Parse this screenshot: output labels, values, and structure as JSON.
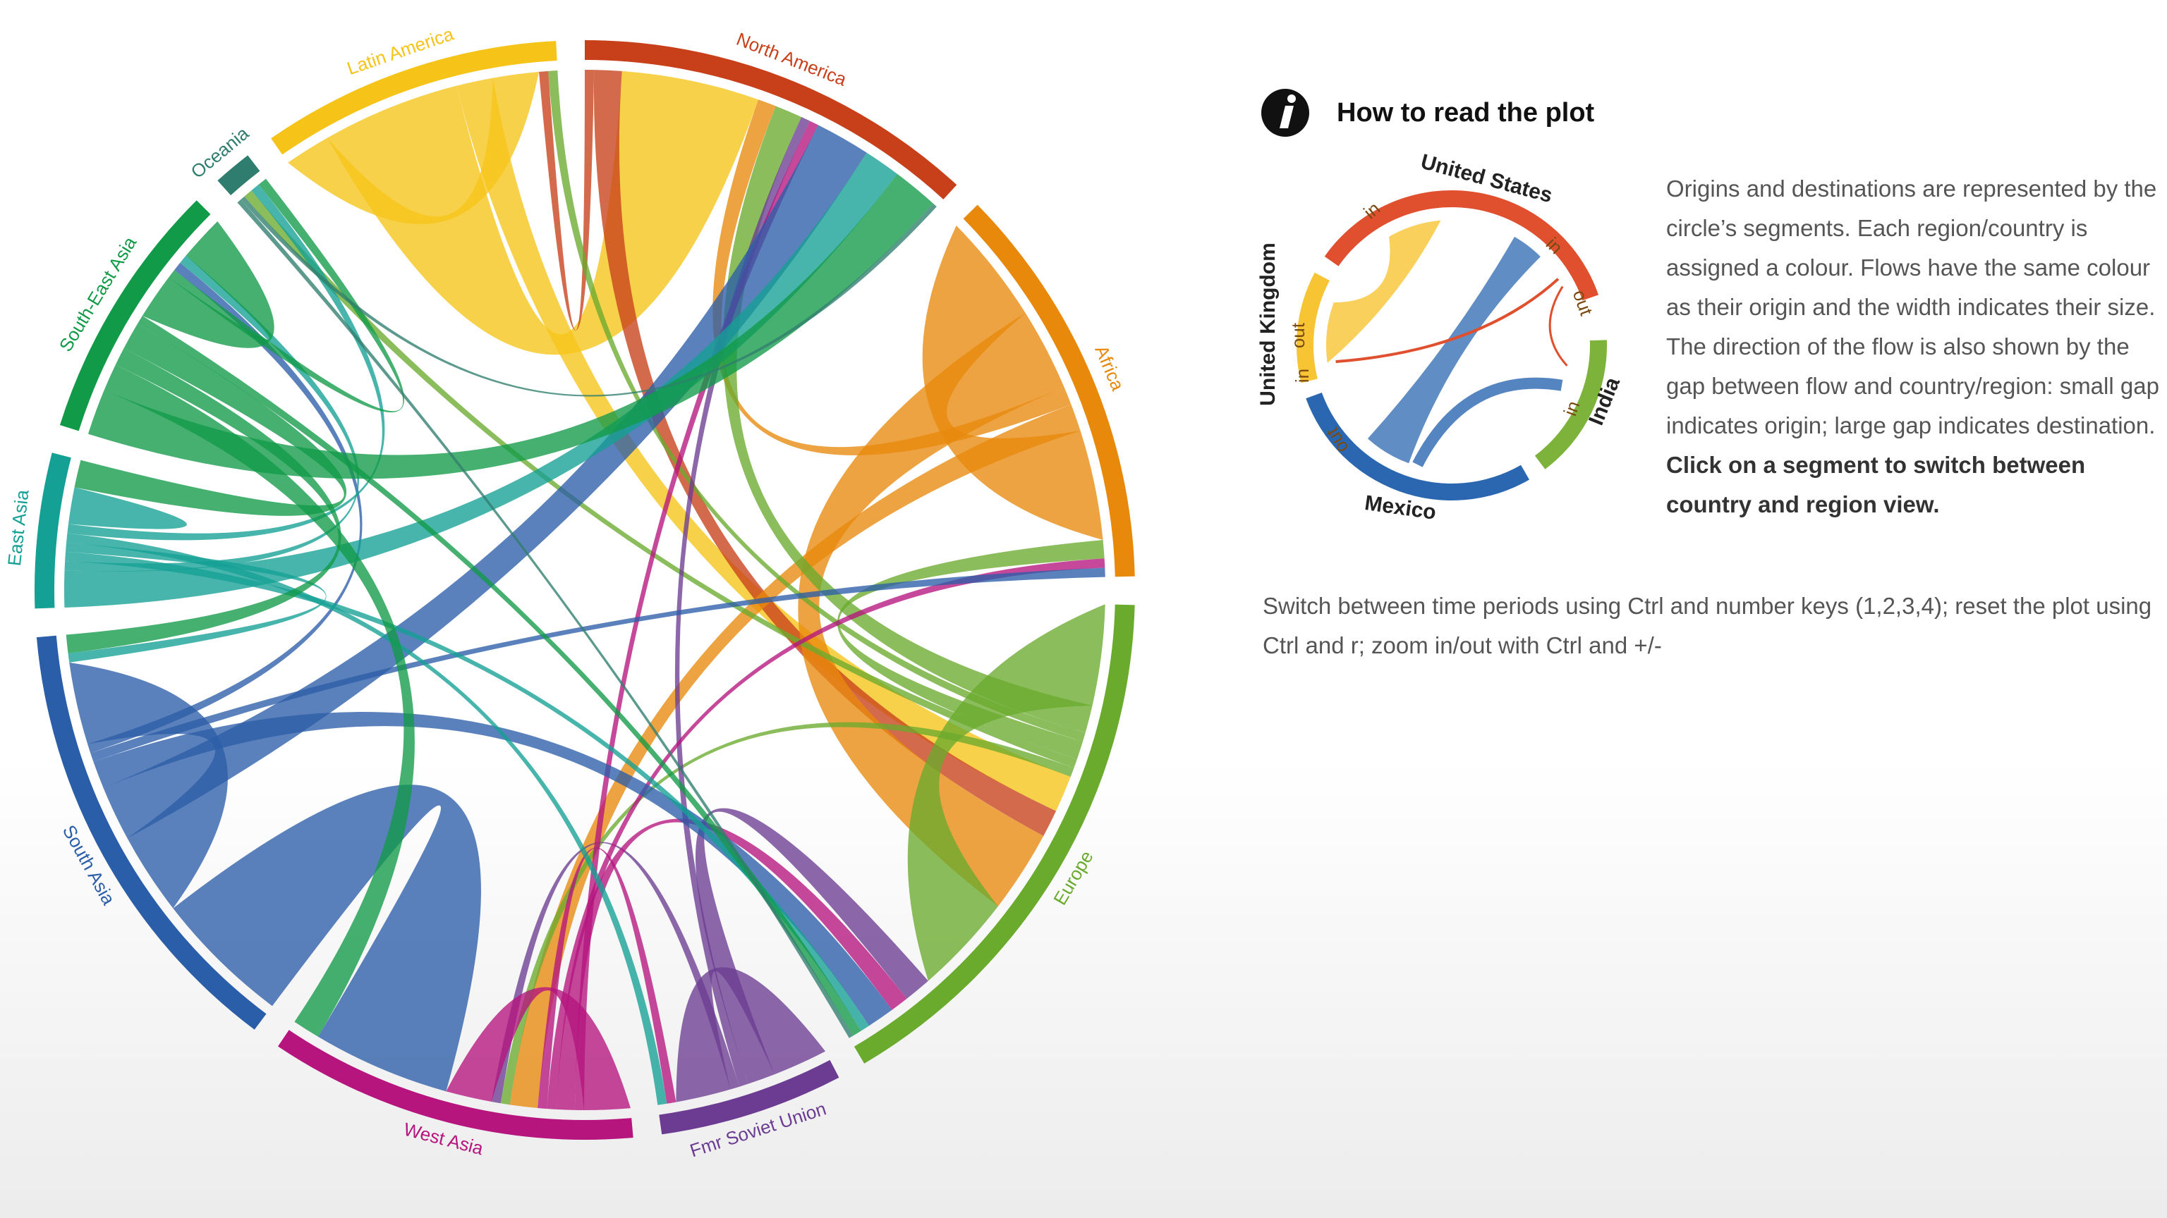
{
  "chart_data": {
    "type": "chord",
    "regions": [
      {
        "name": "North America",
        "color": "#c8401a"
      },
      {
        "name": "Africa",
        "color": "#e8890c"
      },
      {
        "name": "Europe",
        "color": "#6aab2e"
      },
      {
        "name": "Fmr Soviet Union",
        "color": "#6b3c91"
      },
      {
        "name": "West Asia",
        "color": "#b5157d"
      },
      {
        "name": "South Asia",
        "color": "#2b5ea8"
      },
      {
        "name": "East Asia",
        "color": "#14a095"
      },
      {
        "name": "South-East Asia",
        "color": "#119a48"
      },
      {
        "name": "Oceania",
        "color": "#2f7d6e"
      },
      {
        "name": "Latin America",
        "color": "#f6c418"
      }
    ],
    "flows": [
      {
        "source": "Latin America",
        "target": "Latin America",
        "value": 5
      },
      {
        "source": "Latin America",
        "target": "North America",
        "value": 15
      },
      {
        "source": "Latin America",
        "target": "Europe",
        "value": 4
      },
      {
        "source": "North America",
        "target": "Latin America",
        "value": 1
      },
      {
        "source": "North America",
        "target": "Europe",
        "value": 3
      },
      {
        "source": "Africa",
        "target": "Africa",
        "value": 12
      },
      {
        "source": "Africa",
        "target": "Europe",
        "value": 9
      },
      {
        "source": "Africa",
        "target": "North America",
        "value": 2
      },
      {
        "source": "Africa",
        "target": "West Asia",
        "value": 3
      },
      {
        "source": "Europe",
        "target": "Europe",
        "value": 11
      },
      {
        "source": "Europe",
        "target": "North America",
        "value": 3
      },
      {
        "source": "Europe",
        "target": "Latin America",
        "value": 1
      },
      {
        "source": "Europe",
        "target": "Africa",
        "value": 2
      },
      {
        "source": "Europe",
        "target": "Oceania",
        "value": 1
      },
      {
        "source": "Europe",
        "target": "West Asia",
        "value": 1
      },
      {
        "source": "Fmr Soviet Union",
        "target": "Fmr Soviet Union",
        "value": 6
      },
      {
        "source": "Fmr Soviet Union",
        "target": "Europe",
        "value": 3
      },
      {
        "source": "Fmr Soviet Union",
        "target": "North America",
        "value": 1
      },
      {
        "source": "Fmr Soviet Union",
        "target": "West Asia",
        "value": 1
      },
      {
        "source": "West Asia",
        "target": "West Asia",
        "value": 5
      },
      {
        "source": "West Asia",
        "target": "North America",
        "value": 1
      },
      {
        "source": "West Asia",
        "target": "Europe",
        "value": 2
      },
      {
        "source": "West Asia",
        "target": "Africa",
        "value": 1
      },
      {
        "source": "West Asia",
        "target": "Fmr Soviet Union",
        "value": 1
      },
      {
        "source": "South Asia",
        "target": "West Asia",
        "value": 15
      },
      {
        "source": "South Asia",
        "target": "South Asia",
        "value": 9
      },
      {
        "source": "South Asia",
        "target": "North America",
        "value": 6
      },
      {
        "source": "South Asia",
        "target": "Europe",
        "value": 3
      },
      {
        "source": "South Asia",
        "target": "Africa",
        "value": 1
      },
      {
        "source": "South Asia",
        "target": "South-East Asia",
        "value": 1
      },
      {
        "source": "East Asia",
        "target": "North America",
        "value": 4
      },
      {
        "source": "East Asia",
        "target": "South-East Asia",
        "value": 1
      },
      {
        "source": "East Asia",
        "target": "Europe",
        "value": 1
      },
      {
        "source": "East Asia",
        "target": "South Asia",
        "value": 1
      },
      {
        "source": "East Asia",
        "target": "Fmr Soviet Union",
        "value": 1
      },
      {
        "source": "East Asia",
        "target": "Oceania",
        "value": 1
      },
      {
        "source": "East Asia",
        "target": "East Asia",
        "value": 2
      },
      {
        "source": "South-East Asia",
        "target": "North America",
        "value": 5
      },
      {
        "source": "South-East Asia",
        "target": "West Asia",
        "value": 3
      },
      {
        "source": "South-East Asia",
        "target": "South Asia",
        "value": 2
      },
      {
        "source": "South-East Asia",
        "target": "East Asia",
        "value": 3
      },
      {
        "source": "South-East Asia",
        "target": "Europe",
        "value": 1
      },
      {
        "source": "South-East Asia",
        "target": "South-East Asia",
        "value": 5
      },
      {
        "source": "South-East Asia",
        "target": "Oceania",
        "value": 1
      },
      {
        "source": "Oceania",
        "target": "Europe",
        "value": 0.5
      },
      {
        "source": "Oceania",
        "target": "North America",
        "value": 0.5
      }
    ]
  },
  "info_panel": {
    "title": "How to read the plot",
    "legend_diagram": {
      "segments": [
        {
          "name": "United States",
          "color": "#e0502e"
        },
        {
          "name": "United Kingdom",
          "color": "#7db33a"
        },
        {
          "name": "India",
          "color": "#2a67b0"
        },
        {
          "name": "Mexico",
          "color": "#f7c433"
        }
      ],
      "direction_labels": [
        "in",
        "in",
        "out",
        "in",
        "out",
        "in",
        "out"
      ]
    },
    "description": "Origins and destinations are represented by the circle’s segments. Each region/country is assigned a colour. Flows have the same colour as their origin and the width indicates their size. The direction of the flow is also shown by the gap between flow and country/region: small gap indicates origin; large gap indicates destination.",
    "description_bold": "Click on a segment to switch between country and region view.",
    "note": "Switch between time periods using Ctrl and number keys (1,2,3,4); reset the plot using Ctrl and r; zoom in/out with Ctrl and +/-"
  }
}
